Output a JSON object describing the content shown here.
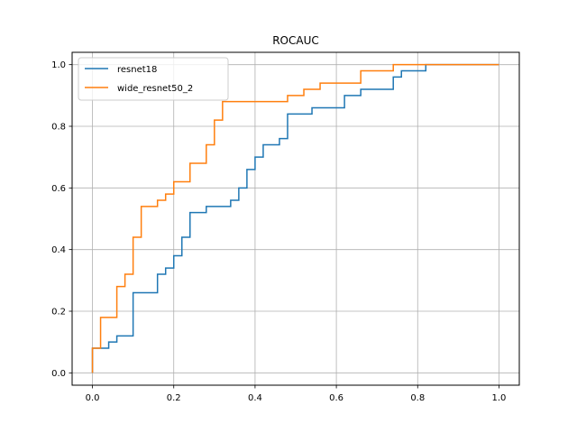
{
  "chart_data": {
    "type": "line",
    "title": "ROCAUC",
    "xlabel": "",
    "ylabel": "",
    "xlim": [
      -0.05,
      1.05
    ],
    "ylim": [
      -0.04,
      1.04
    ],
    "xticks": [
      0.0,
      0.2,
      0.4,
      0.6,
      0.8,
      1.0
    ],
    "yticks": [
      0.0,
      0.2,
      0.4,
      0.6,
      0.8,
      1.0
    ],
    "grid": true,
    "legend_position": "top-left",
    "series": [
      {
        "name": "resnet18",
        "color": "#1f77b4",
        "x": [
          0.0,
          0.0,
          0.04,
          0.04,
          0.06,
          0.06,
          0.1,
          0.1,
          0.16,
          0.16,
          0.18,
          0.18,
          0.2,
          0.2,
          0.22,
          0.22,
          0.24,
          0.24,
          0.28,
          0.28,
          0.34,
          0.34,
          0.36,
          0.36,
          0.38,
          0.38,
          0.4,
          0.4,
          0.42,
          0.42,
          0.46,
          0.46,
          0.48,
          0.48,
          0.54,
          0.54,
          0.62,
          0.62,
          0.66,
          0.66,
          0.74,
          0.74,
          0.76,
          0.76,
          0.82,
          0.82,
          1.0
        ],
        "y": [
          0.0,
          0.08,
          0.08,
          0.1,
          0.1,
          0.12,
          0.12,
          0.26,
          0.26,
          0.32,
          0.32,
          0.34,
          0.34,
          0.38,
          0.38,
          0.44,
          0.44,
          0.52,
          0.52,
          0.54,
          0.54,
          0.56,
          0.56,
          0.6,
          0.6,
          0.66,
          0.66,
          0.7,
          0.7,
          0.74,
          0.74,
          0.76,
          0.76,
          0.84,
          0.84,
          0.86,
          0.86,
          0.9,
          0.9,
          0.92,
          0.92,
          0.96,
          0.96,
          0.98,
          0.98,
          1.0,
          1.0
        ]
      },
      {
        "name": "wide_resnet50_2",
        "color": "#ff7f0e",
        "x": [
          0.0,
          0.0,
          0.02,
          0.02,
          0.06,
          0.06,
          0.08,
          0.08,
          0.1,
          0.1,
          0.12,
          0.12,
          0.16,
          0.16,
          0.18,
          0.18,
          0.2,
          0.2,
          0.24,
          0.24,
          0.28,
          0.28,
          0.3,
          0.3,
          0.32,
          0.32,
          0.48,
          0.48,
          0.52,
          0.52,
          0.56,
          0.56,
          0.66,
          0.66,
          0.74,
          0.74,
          1.0
        ],
        "y": [
          0.0,
          0.08,
          0.08,
          0.18,
          0.18,
          0.28,
          0.28,
          0.32,
          0.32,
          0.44,
          0.44,
          0.54,
          0.54,
          0.56,
          0.56,
          0.58,
          0.58,
          0.62,
          0.62,
          0.68,
          0.68,
          0.74,
          0.74,
          0.82,
          0.82,
          0.88,
          0.88,
          0.9,
          0.9,
          0.92,
          0.92,
          0.94,
          0.94,
          0.98,
          0.98,
          1.0,
          1.0
        ]
      }
    ]
  }
}
